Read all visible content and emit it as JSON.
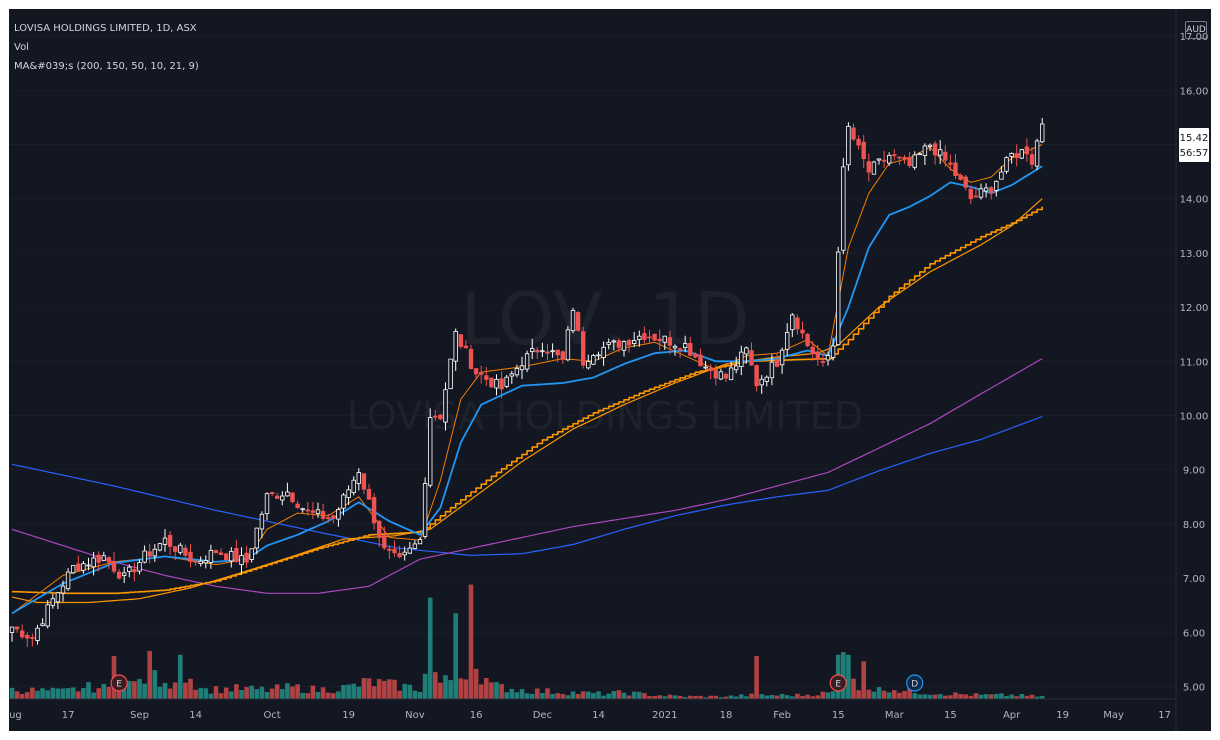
{
  "header": {
    "symbol_title": "LOVISA HOLDINGS LIMITED, 1D, ASX",
    "volume_label": "Vol",
    "ma_label": "MA&#039;s (200, 150, 50, 10, 21, 9)",
    "currency": "AUD"
  },
  "watermark": {
    "ticker": "LOV, 1D",
    "name": "LOVISA HOLDINGS LIMITED"
  },
  "last_price": {
    "value": "15.42",
    "countdown": "56:57"
  },
  "colors": {
    "background": "#131722",
    "up": "#ffffff",
    "down": "#ef5350",
    "vol_up": "#26a69a",
    "vol_down": "#ef5350",
    "ma_200": "#2962ff",
    "ma_150": "#ab47bc",
    "ma_50": "#ff9800",
    "ma_21": "#2196f3",
    "ma_10": "#f57c00"
  },
  "chart_data": {
    "type": "candlestick",
    "y_axis": {
      "ticks": [
        "5.00",
        "6.00",
        "7.00",
        "8.00",
        "9.00",
        "10.00",
        "11.00",
        "12.00",
        "13.00",
        "14.00",
        "15.00",
        "16.00",
        "17.00"
      ],
      "range": [
        4.77,
        17.5
      ]
    },
    "x_axis": {
      "labels": [
        "Aug",
        "17",
        "Sep",
        "14",
        "Oct",
        "19",
        "Nov",
        "16",
        "Dec",
        "14",
        "2021",
        "18",
        "Feb",
        "15",
        "Mar",
        "15",
        "Apr",
        "19",
        "May",
        "17"
      ],
      "label_indices": [
        0,
        11,
        25,
        36,
        51,
        66,
        79,
        91,
        104,
        115,
        128,
        140,
        151,
        162,
        173,
        184,
        196,
        206,
        216,
        226
      ]
    },
    "events": [
      {
        "label": "E",
        "index": 21
      },
      {
        "label": "E",
        "index": 162
      },
      {
        "label": "D",
        "index": 177
      }
    ],
    "price_keys": [
      [
        0,
        6.1
      ],
      [
        4,
        5.9
      ],
      [
        8,
        6.6
      ],
      [
        12,
        7.2
      ],
      [
        18,
        7.4
      ],
      [
        22,
        7.0
      ],
      [
        26,
        7.4
      ],
      [
        30,
        7.7
      ],
      [
        36,
        7.3
      ],
      [
        40,
        7.5
      ],
      [
        46,
        7.3
      ],
      [
        50,
        8.5
      ],
      [
        54,
        8.6
      ],
      [
        58,
        8.2
      ],
      [
        63,
        8.1
      ],
      [
        68,
        9.0
      ],
      [
        73,
        7.5
      ],
      [
        76,
        7.3
      ],
      [
        80,
        7.7
      ],
      [
        82,
        10.0
      ],
      [
        84,
        10.0
      ],
      [
        87,
        11.5
      ],
      [
        91,
        10.8
      ],
      [
        96,
        10.5
      ],
      [
        100,
        11.0
      ],
      [
        104,
        11.3
      ],
      [
        108,
        11.0
      ],
      [
        110,
        12.0
      ],
      [
        112,
        11.0
      ],
      [
        114,
        11.2
      ],
      [
        118,
        11.3
      ],
      [
        124,
        11.5
      ],
      [
        128,
        11.4
      ],
      [
        132,
        11.3
      ],
      [
        136,
        10.9
      ],
      [
        140,
        10.7
      ],
      [
        144,
        11.2
      ],
      [
        146,
        10.6
      ],
      [
        150,
        11.0
      ],
      [
        153,
        11.9
      ],
      [
        156,
        11.3
      ],
      [
        159,
        10.9
      ],
      [
        161,
        11.3
      ],
      [
        162,
        13.1
      ],
      [
        163,
        14.5
      ],
      [
        164,
        15.3
      ],
      [
        168,
        14.5
      ],
      [
        172,
        14.8
      ],
      [
        176,
        14.6
      ],
      [
        180,
        15.0
      ],
      [
        184,
        14.6
      ],
      [
        188,
        14.0
      ],
      [
        192,
        14.2
      ],
      [
        196,
        14.8
      ],
      [
        199,
        14.9
      ],
      [
        200,
        14.7
      ],
      [
        202,
        15.42
      ]
    ],
    "volume_keys": [
      [
        0,
        0.07
      ],
      [
        10,
        0.06
      ],
      [
        15,
        0.09
      ],
      [
        20,
        0.08
      ],
      [
        22,
        0.15
      ],
      [
        24,
        0.11
      ],
      [
        27,
        0.19
      ],
      [
        30,
        0.09
      ],
      [
        33,
        0.21
      ],
      [
        38,
        0.07
      ],
      [
        44,
        0.08
      ],
      [
        50,
        0.07
      ],
      [
        55,
        0.09
      ],
      [
        60,
        0.07
      ],
      [
        66,
        0.09
      ],
      [
        70,
        0.13
      ],
      [
        76,
        0.1
      ],
      [
        80,
        0.08
      ],
      [
        82,
        0.28
      ],
      [
        84,
        0.12
      ],
      [
        88,
        0.18
      ],
      [
        90,
        0.3
      ],
      [
        94,
        0.1
      ],
      [
        100,
        0.07
      ],
      [
        104,
        0.06
      ],
      [
        110,
        0.05
      ],
      [
        116,
        0.04
      ],
      [
        120,
        0.05
      ],
      [
        126,
        0.03
      ],
      [
        132,
        0.02
      ],
      [
        140,
        0.02
      ],
      [
        145,
        0.03
      ],
      [
        150,
        0.03
      ],
      [
        155,
        0.03
      ],
      [
        161,
        0.05
      ],
      [
        162,
        0.15
      ],
      [
        164,
        0.18
      ],
      [
        166,
        0.11
      ],
      [
        170,
        0.07
      ],
      [
        172,
        0.09
      ],
      [
        175,
        0.06
      ],
      [
        180,
        0.05
      ],
      [
        184,
        0.04
      ],
      [
        190,
        0.03
      ],
      [
        196,
        0.03
      ],
      [
        202,
        0.02
      ]
    ],
    "volume_spikes": [
      [
        20,
        0.33
      ],
      [
        27,
        0.37
      ],
      [
        33,
        0.34
      ],
      [
        82,
        0.78
      ],
      [
        87,
        0.66
      ],
      [
        90,
        0.88
      ],
      [
        146,
        0.33
      ],
      [
        162,
        0.34
      ],
      [
        163,
        0.36
      ],
      [
        164,
        0.34
      ],
      [
        167,
        0.29
      ]
    ],
    "ma_200_keys": [
      [
        0,
        9.1
      ],
      [
        20,
        8.7
      ],
      [
        40,
        8.25
      ],
      [
        60,
        7.85
      ],
      [
        76,
        7.55
      ],
      [
        90,
        7.42
      ],
      [
        100,
        7.45
      ],
      [
        110,
        7.62
      ],
      [
        120,
        7.9
      ],
      [
        130,
        8.15
      ],
      [
        140,
        8.35
      ],
      [
        150,
        8.5
      ],
      [
        160,
        8.62
      ],
      [
        170,
        8.98
      ],
      [
        180,
        9.3
      ],
      [
        190,
        9.56
      ],
      [
        202,
        9.98
      ]
    ],
    "ma_150_keys": [
      [
        0,
        7.9
      ],
      [
        10,
        7.6
      ],
      [
        20,
        7.3
      ],
      [
        30,
        7.05
      ],
      [
        40,
        6.85
      ],
      [
        50,
        6.72
      ],
      [
        60,
        6.72
      ],
      [
        70,
        6.85
      ],
      [
        80,
        7.35
      ],
      [
        90,
        7.55
      ],
      [
        100,
        7.75
      ],
      [
        110,
        7.95
      ],
      [
        120,
        8.1
      ],
      [
        130,
        8.25
      ],
      [
        140,
        8.45
      ],
      [
        150,
        8.7
      ],
      [
        160,
        8.95
      ],
      [
        170,
        9.4
      ],
      [
        180,
        9.85
      ],
      [
        190,
        10.4
      ],
      [
        202,
        11.05
      ]
    ],
    "ma_50_keys": [
      [
        0,
        6.65
      ],
      [
        5,
        6.55
      ],
      [
        15,
        6.55
      ],
      [
        25,
        6.62
      ],
      [
        35,
        6.82
      ],
      [
        45,
        7.1
      ],
      [
        55,
        7.4
      ],
      [
        65,
        7.72
      ],
      [
        75,
        7.78
      ],
      [
        82,
        7.9
      ],
      [
        90,
        8.45
      ],
      [
        100,
        9.15
      ],
      [
        110,
        9.75
      ],
      [
        120,
        10.2
      ],
      [
        130,
        10.6
      ],
      [
        140,
        10.95
      ],
      [
        150,
        11.08
      ],
      [
        158,
        11.15
      ],
      [
        162,
        11.3
      ],
      [
        170,
        12.0
      ],
      [
        180,
        12.65
      ],
      [
        190,
        13.15
      ],
      [
        196,
        13.5
      ],
      [
        202,
        14.0
      ]
    ],
    "ma_21_keys": [
      [
        0,
        6.35
      ],
      [
        10,
        6.9
      ],
      [
        20,
        7.28
      ],
      [
        30,
        7.4
      ],
      [
        40,
        7.3
      ],
      [
        46,
        7.35
      ],
      [
        50,
        7.6
      ],
      [
        56,
        7.8
      ],
      [
        62,
        8.05
      ],
      [
        68,
        8.4
      ],
      [
        74,
        8.05
      ],
      [
        80,
        7.8
      ],
      [
        84,
        8.3
      ],
      [
        88,
        9.5
      ],
      [
        92,
        10.2
      ],
      [
        100,
        10.55
      ],
      [
        108,
        10.6
      ],
      [
        114,
        10.7
      ],
      [
        120,
        10.95
      ],
      [
        126,
        11.15
      ],
      [
        132,
        11.2
      ],
      [
        138,
        11.0
      ],
      [
        144,
        11.0
      ],
      [
        150,
        11.05
      ],
      [
        156,
        11.2
      ],
      [
        160,
        11.1
      ],
      [
        164,
        12.0
      ],
      [
        168,
        13.1
      ],
      [
        172,
        13.7
      ],
      [
        176,
        13.85
      ],
      [
        180,
        14.05
      ],
      [
        184,
        14.3
      ],
      [
        188,
        14.22
      ],
      [
        192,
        14.1
      ],
      [
        196,
        14.25
      ],
      [
        202,
        14.6
      ]
    ],
    "ma_10_keys": [
      [
        0,
        6.35
      ],
      [
        10,
        7.05
      ],
      [
        20,
        7.3
      ],
      [
        30,
        7.4
      ],
      [
        40,
        7.25
      ],
      [
        46,
        7.35
      ],
      [
        50,
        7.9
      ],
      [
        56,
        8.2
      ],
      [
        62,
        8.15
      ],
      [
        68,
        8.5
      ],
      [
        74,
        7.75
      ],
      [
        80,
        7.7
      ],
      [
        84,
        8.8
      ],
      [
        88,
        10.3
      ],
      [
        92,
        10.8
      ],
      [
        100,
        10.9
      ],
      [
        108,
        11.05
      ],
      [
        114,
        11.0
      ],
      [
        120,
        11.25
      ],
      [
        126,
        11.35
      ],
      [
        132,
        11.1
      ],
      [
        138,
        10.85
      ],
      [
        144,
        11.1
      ],
      [
        150,
        11.15
      ],
      [
        156,
        11.4
      ],
      [
        160,
        11.1
      ],
      [
        164,
        13.1
      ],
      [
        168,
        14.1
      ],
      [
        172,
        14.65
      ],
      [
        176,
        14.75
      ],
      [
        180,
        14.95
      ],
      [
        184,
        14.55
      ],
      [
        188,
        14.3
      ],
      [
        192,
        14.4
      ],
      [
        196,
        14.75
      ],
      [
        202,
        15.0
      ]
    ],
    "ma_9_keys": [
      [
        0,
        6.75
      ],
      [
        10,
        6.72
      ],
      [
        20,
        6.72
      ],
      [
        30,
        6.78
      ],
      [
        40,
        6.95
      ],
      [
        50,
        7.25
      ],
      [
        60,
        7.55
      ],
      [
        70,
        7.8
      ],
      [
        80,
        7.85
      ],
      [
        86,
        8.3
      ],
      [
        95,
        8.95
      ],
      [
        104,
        9.55
      ],
      [
        114,
        10.05
      ],
      [
        124,
        10.45
      ],
      [
        134,
        10.8
      ],
      [
        144,
        11.0
      ],
      [
        150,
        11.02
      ],
      [
        160,
        11.05
      ],
      [
        164,
        11.4
      ],
      [
        172,
        12.2
      ],
      [
        180,
        12.8
      ],
      [
        190,
        13.3
      ],
      [
        196,
        13.55
      ],
      [
        202,
        13.85
      ]
    ]
  }
}
